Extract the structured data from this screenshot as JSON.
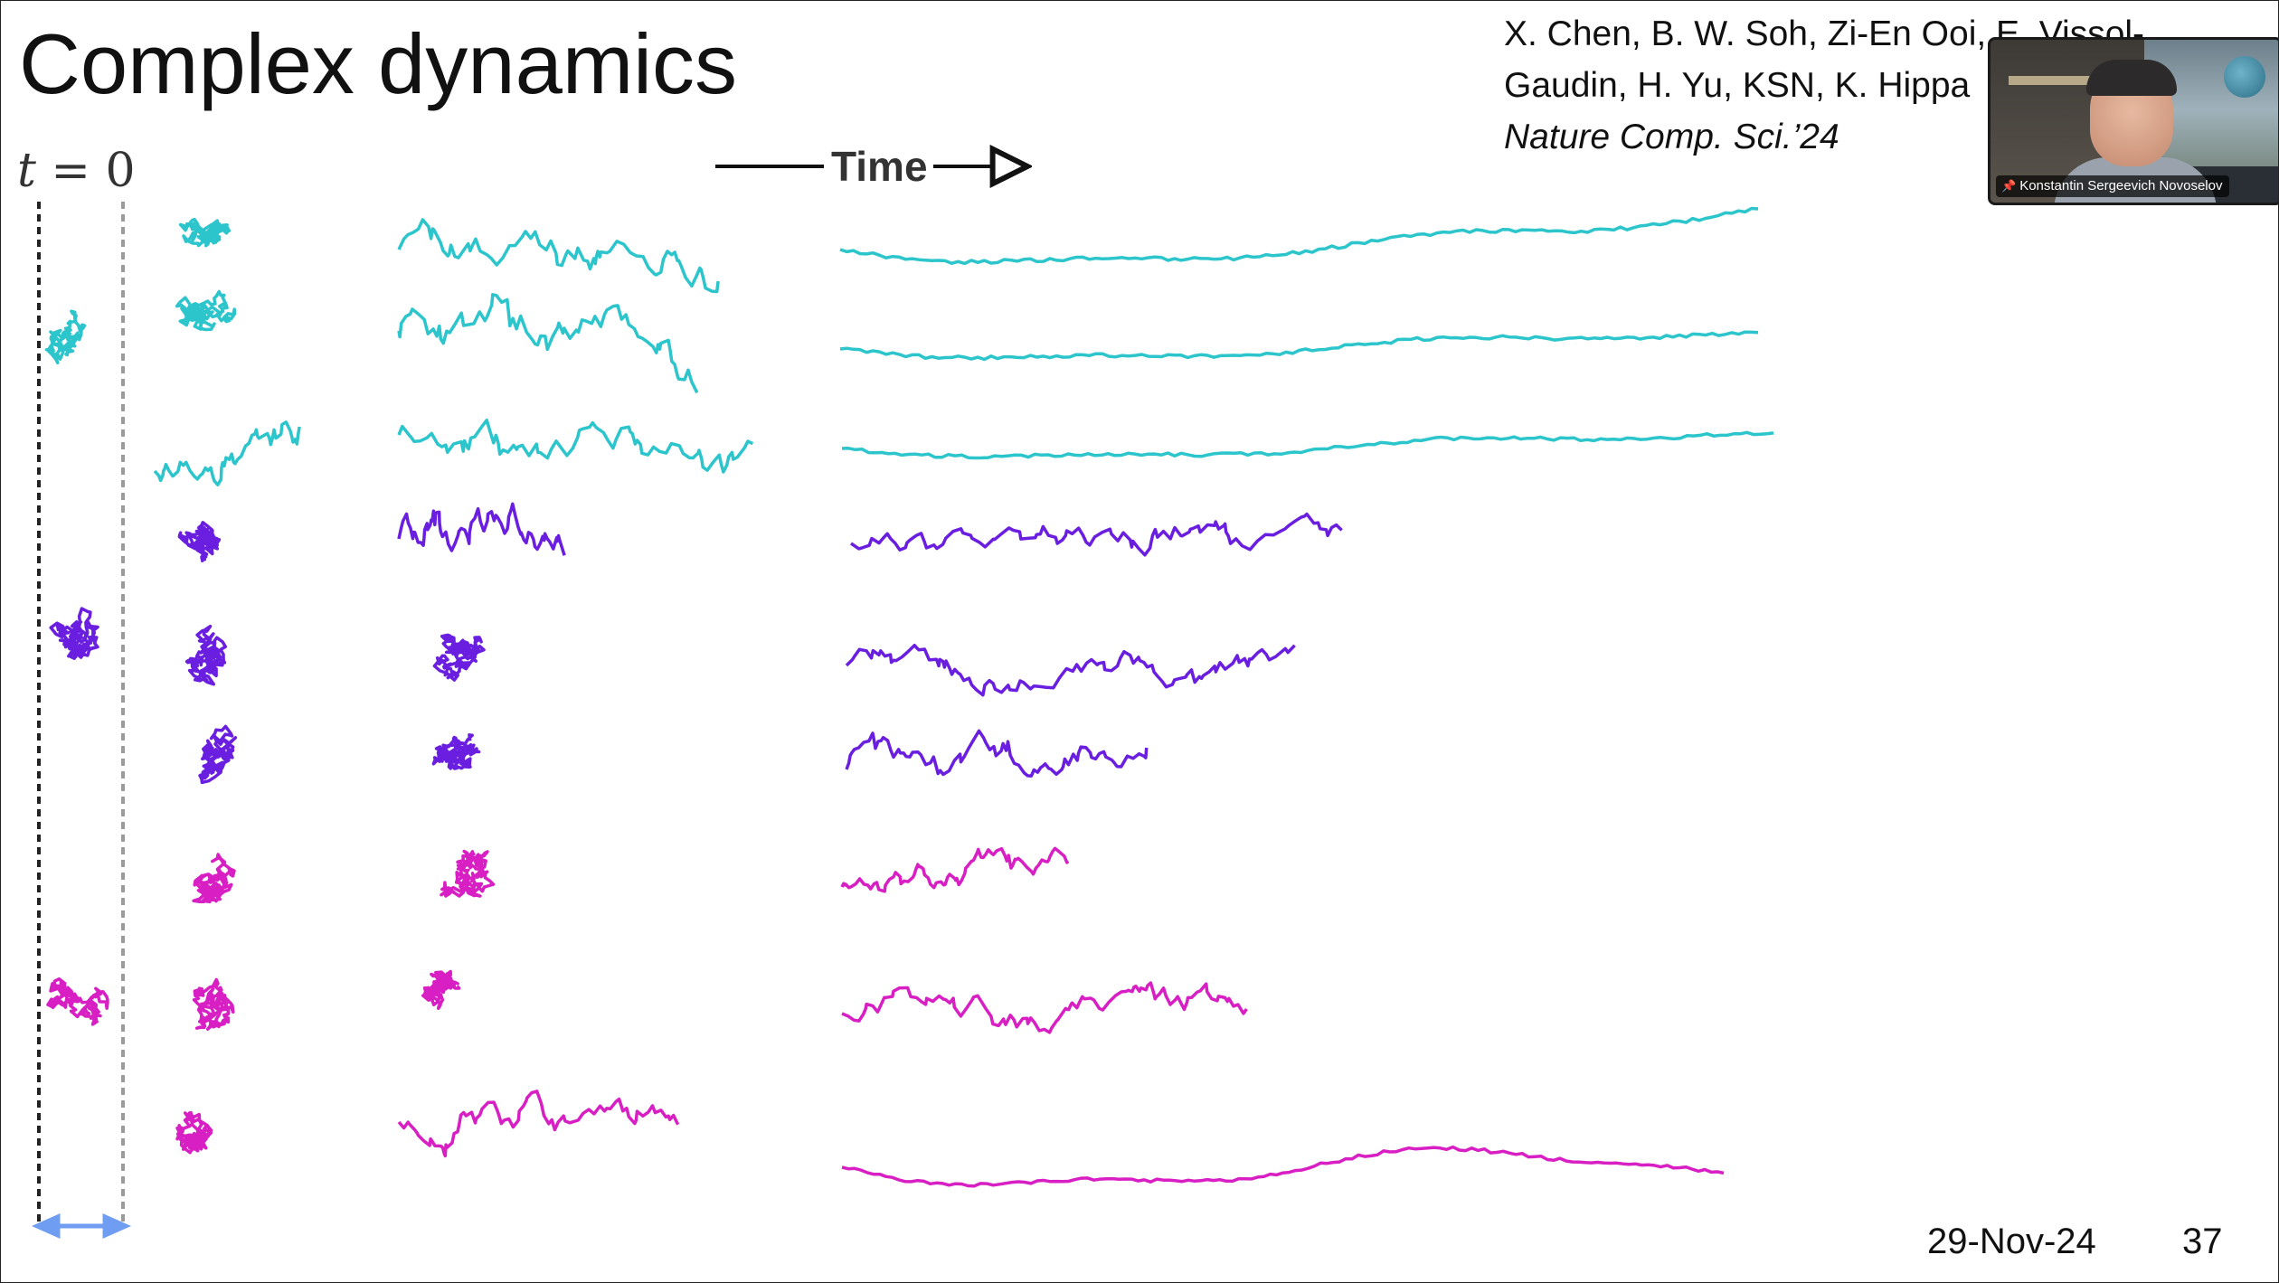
{
  "slide": {
    "title": "Complex dynamics",
    "citation": {
      "authors_line1": "X. Chen, B. W. Soh, Zi-En Ooi, E. Vissol-",
      "authors_line2": "Gaudin, H. Yu, KSN, K. Hippa",
      "journal": "Nature Comp. Sci.’24"
    },
    "date": "29-Nov-24",
    "page_number": "37"
  },
  "figure": {
    "t0_symbol": "t",
    "t0_rest": " = 0",
    "time_label": "Time",
    "colors": {
      "cyan": "#2cc5cc",
      "purple": "#6a1fe0",
      "magenta": "#d81fc3",
      "dash_black": "#222222",
      "dash_grey": "#9a9a9a",
      "span_arrow": "#6f9df2",
      "axis_arrow": "#111111"
    }
  },
  "video_tile": {
    "participant_name": "Konstantin Sergeevich Novoselov",
    "pin_icon": "pin-icon"
  }
}
